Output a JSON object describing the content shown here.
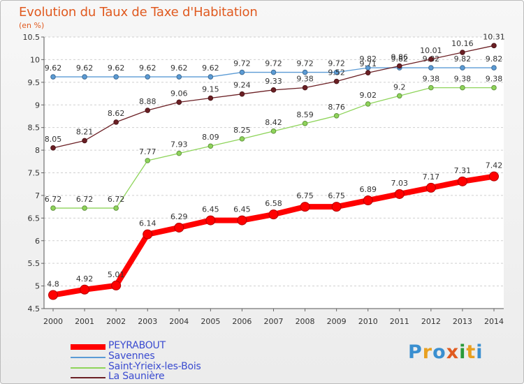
{
  "title": "Evolution du Taux de Taxe d'Habitation",
  "unit": "(en %)",
  "logo": {
    "text": "Proxiti",
    "letter_colors": [
      "#3a8fd0",
      "#e8a020",
      "#3a8fd0",
      "#e05a20",
      "#2a9a3a",
      "#e8a020",
      "#3a8fd0"
    ]
  },
  "chart_data": {
    "type": "line",
    "title": "Evolution du Taux de Taxe d'Habitation",
    "ylabel": "(en %)",
    "xlabel": "",
    "x": [
      "2000",
      "2001",
      "2002",
      "2003",
      "2004",
      "2005",
      "2006",
      "2007",
      "2008",
      "2009",
      "2010",
      "2011",
      "2012",
      "2013",
      "2014"
    ],
    "ylim": [
      4.5,
      10.5
    ],
    "yticks": [
      "4.5",
      "5",
      "5.5",
      "6",
      "6.5",
      "7",
      "7.5",
      "8",
      "8.5",
      "9",
      "9.5",
      "10",
      "10.5"
    ],
    "grid": "horizontal dashed",
    "legend": "bottom-left",
    "series": [
      {
        "name": "PEYRABOUT",
        "color": "#ff0000",
        "emphasis": true,
        "values": [
          4.8,
          4.92,
          5.01,
          6.14,
          6.29,
          6.45,
          6.45,
          6.58,
          6.75,
          6.75,
          6.89,
          7.03,
          7.17,
          7.31,
          7.42
        ],
        "labels": [
          "4.8",
          "4.92",
          "5.01",
          "6.14",
          "6.29",
          "6.45",
          "6.45",
          "6.58",
          "6.75",
          "6.75",
          "6.89",
          "7.03",
          "7.17",
          "7.31",
          "7.42"
        ]
      },
      {
        "name": "Savennes",
        "color": "#5b9bd5",
        "values": [
          9.62,
          9.62,
          9.62,
          9.62,
          9.62,
          9.62,
          9.72,
          9.72,
          9.72,
          9.72,
          9.82,
          9.82,
          9.82,
          9.82,
          9.82
        ],
        "labels": [
          "9.62",
          "9.62",
          "9.62",
          "9.62",
          "9.62",
          "9.62",
          "9.72",
          "9.72",
          "9.72",
          "9.72",
          "9.82",
          "9.82",
          "9.82",
          "9.82",
          "9.82"
        ]
      },
      {
        "name": "Saint-Yrieix-les-Bois",
        "color": "#8ed45a",
        "values": [
          6.72,
          6.72,
          6.72,
          7.77,
          7.93,
          8.09,
          8.25,
          8.42,
          8.59,
          8.76,
          9.02,
          9.2,
          9.38,
          9.38,
          9.38
        ],
        "labels": [
          "6.72",
          "6.72",
          "6.72",
          "7.77",
          "7.93",
          "8.09",
          "8.25",
          "8.42",
          "8.59",
          "8.76",
          "9.02",
          "9.2",
          "9.38",
          "9.38",
          "9.38"
        ]
      },
      {
        "name": "La Saunière",
        "color": "#6b1f24",
        "values": [
          8.05,
          8.21,
          8.62,
          8.88,
          9.06,
          9.15,
          9.24,
          9.33,
          9.38,
          9.52,
          9.71,
          9.86,
          10.01,
          10.16,
          10.31
        ],
        "labels": [
          "8.05",
          "8.21",
          "8.62",
          "8.88",
          "9.06",
          "9.15",
          "9.24",
          "9.33",
          "9.38",
          "9.52",
          "9.71",
          "9.86",
          "10.01",
          "10.16",
          "10.31"
        ]
      }
    ]
  }
}
